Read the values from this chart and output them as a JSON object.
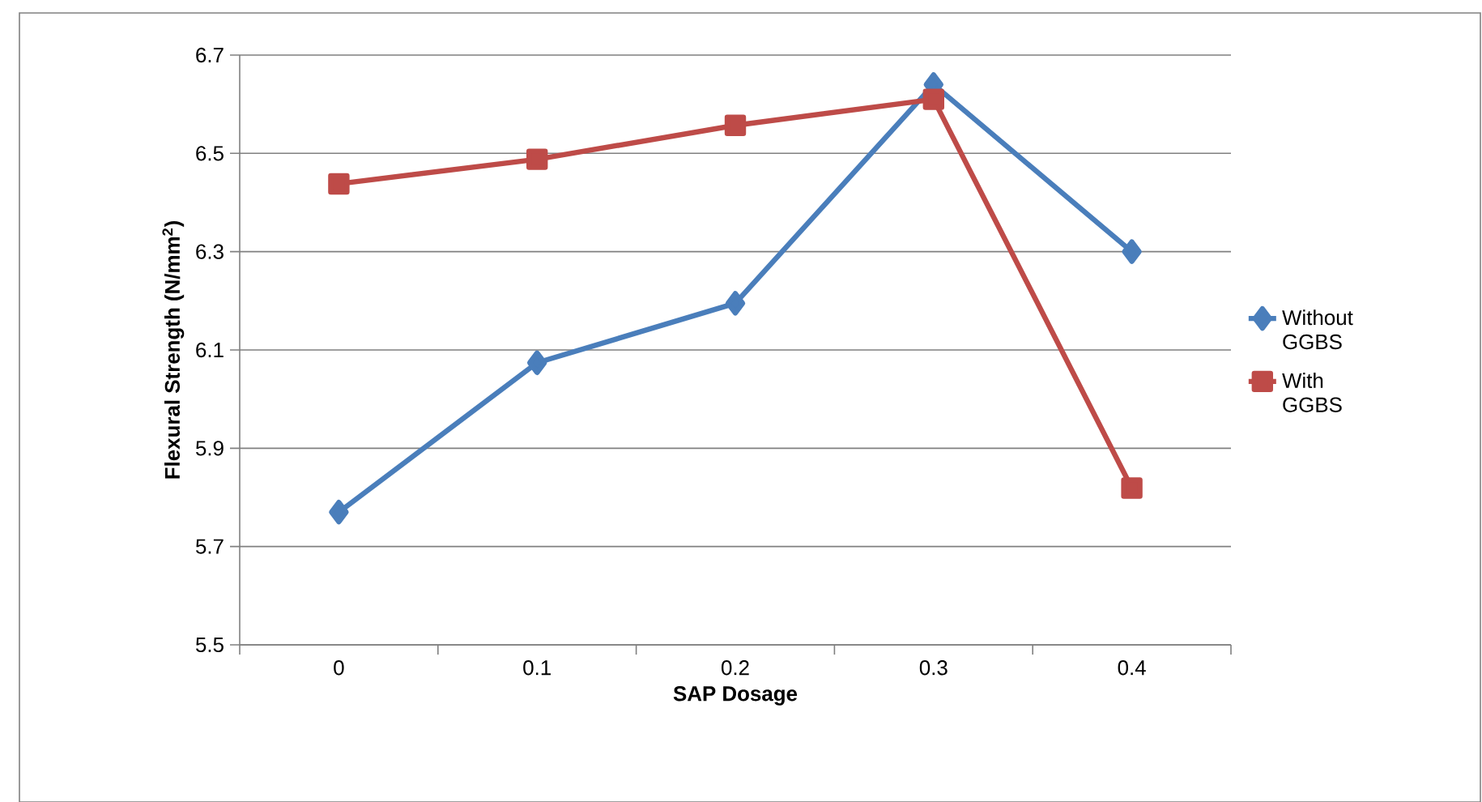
{
  "chart_data": {
    "type": "line",
    "xlabel": "SAP Dosage",
    "ylabel": "Flexural Strength (N/mm$^{2}$)",
    "categories": [
      "0",
      "0.1",
      "0.2",
      "0.3",
      "0.4"
    ],
    "series": [
      {
        "name": "Without GGBS",
        "color": "#4a7ebb",
        "marker": "diamond",
        "values": [
          5.77,
          6.074,
          6.195,
          6.64,
          6.3
        ]
      },
      {
        "name": "With GGBS",
        "color": "#be4b48",
        "marker": "square",
        "values": [
          6.438,
          6.488,
          6.557,
          6.61,
          5.819
        ]
      }
    ],
    "ylim": [
      5.5,
      6.7
    ],
    "yticks": [
      5.5,
      5.7,
      5.9,
      6.1,
      6.3,
      6.5,
      6.7
    ],
    "grid": "y",
    "legend": "right",
    "line_style": "solid"
  }
}
